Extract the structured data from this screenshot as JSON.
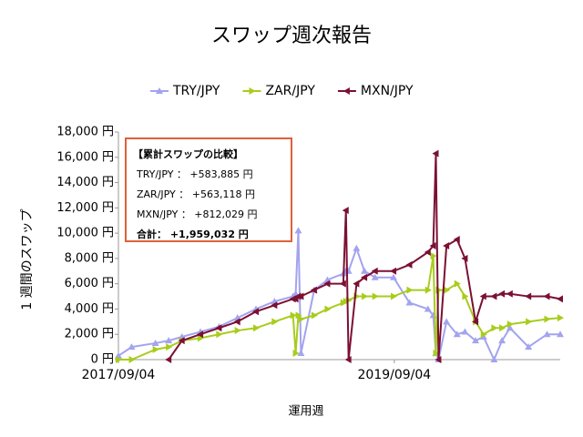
{
  "chart_data": {
    "type": "line",
    "title": "スワップ週次報告",
    "x_label": "運用週",
    "y_label": "1 週間のスワップ",
    "x": [
      "2017/09/04",
      "2017/10/09",
      "2017/12/11",
      "2018/01/15",
      "2018/02/19",
      "2018/04/09",
      "2018/05/28",
      "2018/07/16",
      "2018/09/03",
      "2018/10/22",
      "2018/12/10",
      "2018/12/17",
      "2018/12/24",
      "2018/12/31",
      "2019/02/04",
      "2019/03/11",
      "2019/04/22",
      "2019/04/29",
      "2019/05/06",
      "2019/05/27",
      "2019/06/17",
      "2019/07/15",
      "2019/09/02",
      "2019/10/14",
      "2019/12/02",
      "2019/12/16",
      "2019/12/23",
      "2019/12/30",
      "2020/01/20",
      "2020/02/17",
      "2020/03/09",
      "2020/04/06",
      "2020/04/27",
      "2020/05/25",
      "2020/06/15",
      "2020/07/06",
      "2020/08/24",
      "2020/10/12",
      "2020/11/16"
    ],
    "series": [
      {
        "name": "TRY/JPY",
        "color": "#a3a3f0",
        "marker": "triangle",
        "values": [
          300,
          1000,
          1300,
          1500,
          1800,
          2200,
          2600,
          3300,
          4000,
          4600,
          5000,
          5200,
          10200,
          500,
          5500,
          6300,
          6800,
          7000,
          7000,
          8800,
          7000,
          6500,
          6500,
          4500,
          4000,
          3500,
          500,
          0,
          3000,
          2000,
          2200,
          1500,
          1800,
          0,
          1500,
          2500,
          1000,
          2000,
          2000
        ]
      },
      {
        "name": "ZAR/JPY",
        "color": "#a8cc1c",
        "marker": "arrow",
        "values": [
          0,
          0,
          800,
          1000,
          1500,
          1700,
          2000,
          2300,
          2500,
          3000,
          3500,
          500,
          3500,
          3200,
          3500,
          4000,
          4500,
          4600,
          4700,
          5000,
          5000,
          5000,
          5000,
          5500,
          5500,
          8200,
          500,
          5500,
          5500,
          6000,
          5000,
          3000,
          2000,
          2500,
          2500,
          2800,
          3000,
          3200,
          3300
        ]
      },
      {
        "name": "MXN/JPY",
        "color": "#7b1034",
        "marker": "arrow-left",
        "values": [
          null,
          null,
          null,
          0,
          1500,
          2000,
          2500,
          3000,
          3800,
          4300,
          4800,
          4800,
          5000,
          5000,
          5500,
          6000,
          6000,
          11800,
          0,
          6000,
          6500,
          7000,
          7000,
          7500,
          8500,
          9000,
          16300,
          0,
          9000,
          9500,
          8000,
          3000,
          5000,
          5000,
          5200,
          5200,
          5000,
          5000,
          4800
        ]
      }
    ],
    "xlim": [
      "2017/09/04",
      "2020/11/16"
    ],
    "xticks": [
      "2017/09/04",
      "2019/09/04"
    ],
    "ylim": [
      0,
      18000
    ],
    "yticks": [
      {
        "value": 0,
        "label": "0 円"
      },
      {
        "value": 2000,
        "label": "2,000 円"
      },
      {
        "value": 4000,
        "label": "4,000 円"
      },
      {
        "value": 6000,
        "label": "6,000 円"
      },
      {
        "value": 8000,
        "label": "8,000 円"
      },
      {
        "value": 10000,
        "label": "10,000 円"
      },
      {
        "value": 12000,
        "label": "12,000 円"
      },
      {
        "value": 14000,
        "label": "14,000 円"
      },
      {
        "value": 16000,
        "label": "16,000 円"
      },
      {
        "value": 18000,
        "label": "18,000 円"
      }
    ],
    "legend": "top",
    "annotation": {
      "title": "【累計スワップの比較】",
      "lines": [
        "TRY/JPY ： +583,885 円",
        "ZAR/JPY ： +563,118 円",
        "MXN/JPY ： +812,029 円"
      ],
      "total": "合計： +1,959,032 円"
    }
  }
}
